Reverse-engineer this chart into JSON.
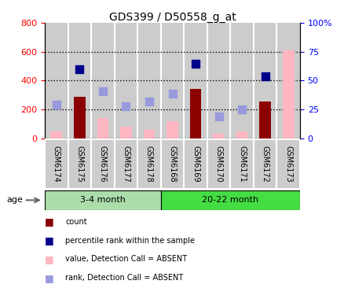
{
  "title": "GDS399 / D50558_g_at",
  "samples": [
    "GSM6174",
    "GSM6175",
    "GSM6176",
    "GSM6177",
    "GSM6178",
    "GSM6168",
    "GSM6169",
    "GSM6170",
    "GSM6171",
    "GSM6172",
    "GSM6173"
  ],
  "count_values": [
    null,
    290,
    null,
    null,
    null,
    null,
    340,
    null,
    null,
    255,
    null
  ],
  "rank_values": [
    null,
    480,
    null,
    null,
    null,
    null,
    520,
    null,
    null,
    430,
    null
  ],
  "absent_count_values": [
    50,
    null,
    140,
    80,
    60,
    120,
    null,
    30,
    50,
    null,
    610
  ],
  "absent_rank_values": [
    235,
    null,
    325,
    220,
    255,
    310,
    null,
    150,
    200,
    null,
    null
  ],
  "ylim_left": [
    0,
    800
  ],
  "ylim_right": [
    0,
    100
  ],
  "yticks_left": [
    0,
    200,
    400,
    600,
    800
  ],
  "yticks_right": [
    0,
    25,
    50,
    75,
    100
  ],
  "ytick_labels_right": [
    "0",
    "25",
    "50",
    "75",
    "100%"
  ],
  "bar_color_count": "#8B0000",
  "bar_color_absent": "#FFB6C1",
  "dot_color_rank": "#00008B",
  "dot_color_absent_rank": "#9999DD",
  "group1_color": "#AADDAA",
  "group2_color": "#44DD44",
  "sample_bg": "#CCCCCC",
  "bar_width": 0.5,
  "dot_size": 55,
  "group1_label": "3-4 month",
  "group2_label": "20-22 month",
  "group1_indices": [
    0,
    1,
    2,
    3,
    4
  ],
  "group2_indices": [
    5,
    6,
    7,
    8,
    9,
    10
  ]
}
